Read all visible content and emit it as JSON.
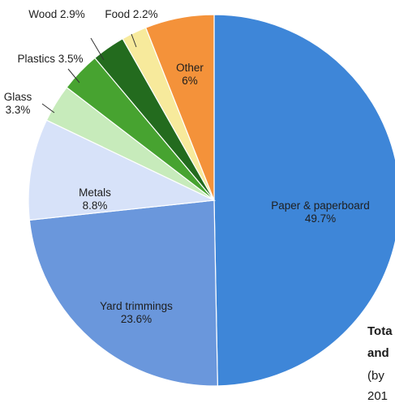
{
  "chart_data": {
    "type": "pie",
    "start_angle_deg": 0,
    "direction": "clockwise",
    "slices": [
      {
        "label": "Paper & paperboard",
        "value_label": "49.7%",
        "value": 49.7,
        "color": "#3e86d8",
        "edge": "#2f74c4"
      },
      {
        "label": "Yard trimmings",
        "value_label": "23.6%",
        "value": 23.6,
        "color": "#6a97dc",
        "edge": "#5a86cc"
      },
      {
        "label": "Metals",
        "value_label": "8.8%",
        "value": 8.8,
        "color": "#d7e2f9",
        "edge": "#c3d2f0"
      },
      {
        "label": "Glass",
        "value_label": "3.3%",
        "value": 3.3,
        "color": "#c7ebbb",
        "edge": "#b3dea5"
      },
      {
        "label": "Plastics",
        "value_label": "3.5%",
        "value": 3.5,
        "color": "#47a330",
        "edge": "#3b8f27"
      },
      {
        "label": "Wood",
        "value_label": "2.9%",
        "value": 2.9,
        "color": "#236b1e",
        "edge": "#1c5a18"
      },
      {
        "label": "Food",
        "value_label": "2.2%",
        "value": 2.2,
        "color": "#f7ea9c",
        "edge": "#e8d884"
      },
      {
        "label": "Other",
        "value_label": "6%",
        "value": 6,
        "color": "#f4923a",
        "edge": "#e27f27"
      }
    ]
  },
  "caption": {
    "line1": "Tota",
    "line2": "and",
    "line3": "(by",
    "line4": "201"
  }
}
